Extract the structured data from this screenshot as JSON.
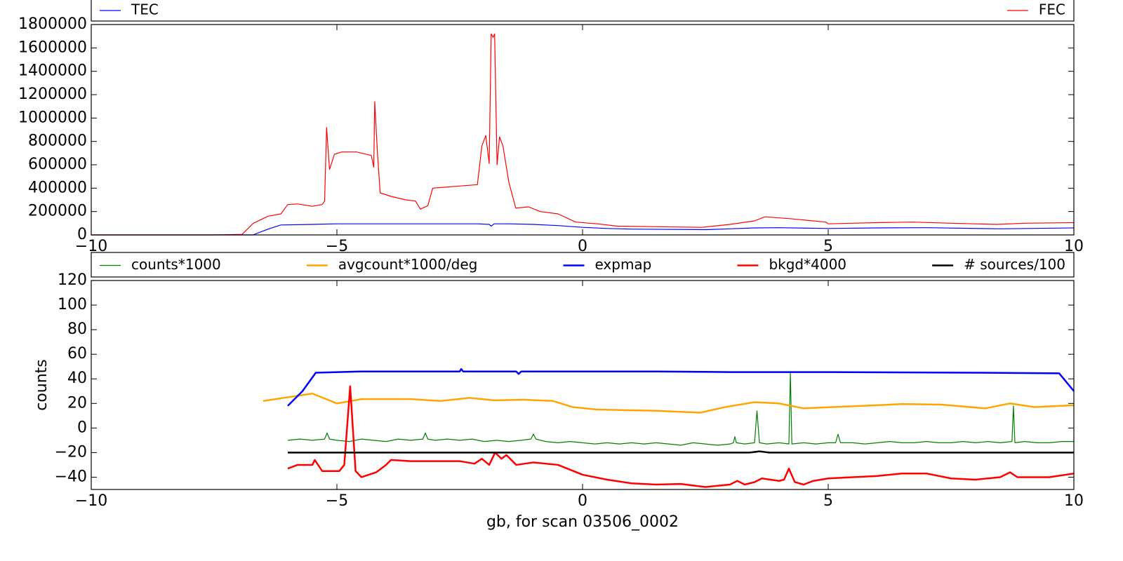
{
  "chart_data": [
    {
      "type": "line",
      "legend": "above",
      "xlim": [
        -10,
        10
      ],
      "xticks": [
        {
          "value": -10,
          "label": "−10"
        },
        {
          "value": -5,
          "label": "−5"
        },
        0,
        5,
        10
      ],
      "ylim": [
        0,
        1800000
      ],
      "yticks": [
        0,
        200000,
        400000,
        600000,
        800000,
        1000000,
        1200000,
        1400000,
        1600000,
        1800000
      ],
      "series": [
        {
          "name": "TEC",
          "color": "#0000ff",
          "x": [
            -10,
            -6.71,
            -6.4,
            -6.14,
            -5.5,
            -5,
            -4,
            -3,
            -2.14,
            -1.9,
            -1.86,
            -1.8,
            -1.5,
            -1,
            -0.5,
            0,
            0.5,
            1,
            2.5,
            3,
            3.5,
            4,
            5,
            6,
            7,
            8.5,
            10
          ],
          "values": [
            0,
            0,
            50000,
            85000,
            90000,
            95000,
            95000,
            95000,
            95000,
            90000,
            75000,
            95000,
            95000,
            90000,
            80000,
            65000,
            55000,
            50000,
            45000,
            52000,
            60000,
            62000,
            55000,
            60000,
            62000,
            52000,
            60000
          ]
        },
        {
          "name": "FEC",
          "color": "#ff0000",
          "x": [
            -10,
            -7.5,
            -6.93,
            -6.7,
            -6.4,
            -6.14,
            -6.0,
            -5.8,
            -5.5,
            -5.3,
            -5.25,
            -5.21,
            -5.15,
            -5.05,
            -4.9,
            -4.6,
            -4.3,
            -4.25,
            -4.23,
            -4.18,
            -4.12,
            -3.9,
            -3.6,
            -3.4,
            -3.3,
            -3.15,
            -3.05,
            -2.6,
            -2.14,
            -2.05,
            -1.97,
            -1.9,
            -1.86,
            -1.82,
            -1.79,
            -1.74,
            -1.69,
            -1.62,
            -1.5,
            -1.36,
            -1.1,
            -0.86,
            -0.5,
            -0.14,
            0.3,
            0.71,
            1.5,
            2.43,
            3.0,
            3.5,
            3.71,
            4.2,
            4.95,
            5.0,
            5.5,
            6.0,
            6.71,
            7.5,
            8.43,
            9.0,
            10
          ],
          "values": [
            0,
            0,
            5000,
            100000,
            160000,
            180000,
            260000,
            265000,
            245000,
            260000,
            290000,
            920000,
            560000,
            690000,
            710000,
            710000,
            680000,
            580000,
            1140000,
            740000,
            360000,
            330000,
            300000,
            290000,
            220000,
            250000,
            400000,
            415000,
            430000,
            760000,
            850000,
            610000,
            1720000,
            1690000,
            1720000,
            600000,
            840000,
            760000,
            450000,
            230000,
            240000,
            200000,
            180000,
            110000,
            95000,
            75000,
            70000,
            65000,
            90000,
            120000,
            155000,
            140000,
            110000,
            95000,
            100000,
            105000,
            110000,
            100000,
            90000,
            100000,
            105000
          ]
        }
      ]
    },
    {
      "type": "line",
      "legend": "above",
      "xlabel": "gb, for scan 03506_0002",
      "ylabel": "counts",
      "xlim": [
        -10,
        10
      ],
      "xticks": [
        {
          "value": -10,
          "label": "−10"
        },
        {
          "value": -5,
          "label": "−5"
        },
        0,
        5,
        10
      ],
      "ylim": [
        -50,
        120
      ],
      "yticks": [
        {
          "value": -40,
          "label": "−40"
        },
        {
          "value": -20,
          "label": "−20"
        },
        0,
        20,
        40,
        60,
        80,
        100,
        120
      ],
      "series": [
        {
          "name": "counts*1000",
          "color": "#008000",
          "x": [
            -6,
            -5.75,
            -5.5,
            -5.25,
            -5.2,
            -5.15,
            -5,
            -4.75,
            -4.5,
            -4.25,
            -4,
            -3.75,
            -3.5,
            -3.25,
            -3.2,
            -3.15,
            -3,
            -2.75,
            -2.5,
            -2.25,
            -2,
            -1.75,
            -1.5,
            -1.25,
            -1.05,
            -1,
            -0.95,
            -0.75,
            -0.5,
            -0.25,
            0,
            0.25,
            0.5,
            0.75,
            1,
            1.25,
            1.5,
            1.75,
            2,
            2.25,
            2.5,
            2.75,
            3,
            3.07,
            3.1,
            3.13,
            3.3,
            3.5,
            3.55,
            3.6,
            3.75,
            4,
            4.2,
            4.23,
            4.26,
            4.5,
            4.75,
            5,
            5.15,
            5.2,
            5.25,
            5.5,
            5.75,
            6,
            6.25,
            6.5,
            6.75,
            7,
            7.25,
            7.5,
            7.75,
            8,
            8.25,
            8.5,
            8.74,
            8.77,
            8.8,
            9,
            9.25,
            9.5,
            9.75,
            10
          ],
          "values": [
            -10,
            -9,
            -10,
            -9,
            -4,
            -9,
            -10,
            -11,
            -9,
            -10,
            -11,
            -9,
            -10,
            -9,
            -4,
            -9,
            -10,
            -9,
            -10,
            -9,
            -11,
            -10,
            -11,
            -10,
            -9,
            -5,
            -9,
            -11,
            -12,
            -11,
            -12,
            -13,
            -12,
            -13,
            -12,
            -13,
            -12,
            -13,
            -14,
            -12,
            -13,
            -14,
            -13,
            -12,
            -7,
            -12,
            -13,
            -12,
            14,
            -12,
            -13,
            -12,
            -13,
            45,
            -13,
            -12,
            -13,
            -12,
            -12,
            -5,
            -12,
            -12,
            -13,
            -12,
            -11,
            -12,
            -12,
            -11,
            -12,
            -12,
            -11,
            -12,
            -11,
            -12,
            -11,
            18,
            -12,
            -11,
            -12,
            -12,
            -11,
            -11
          ]
        },
        {
          "name": "avgcount*1000/deg",
          "color": "#ffa500",
          "x": [
            -6.5,
            -5.5,
            -5,
            -4.5,
            -3.5,
            -2.9,
            -2.3,
            -1.8,
            -1.2,
            -0.6,
            -0.2,
            0.3,
            1.5,
            2.4,
            2.9,
            3.5,
            4.0,
            4.5,
            6.0,
            6.5,
            7.3,
            8.2,
            8.7,
            9.2,
            10
          ],
          "values": [
            22,
            28,
            20,
            23.5,
            23.5,
            22,
            24.5,
            22.5,
            23,
            22,
            17,
            15,
            14,
            12.5,
            17,
            21,
            20,
            16,
            18.5,
            19.5,
            19,
            16,
            20,
            17,
            18.5
          ]
        },
        {
          "name": "expmap",
          "color": "#0000ff",
          "x": [
            -6,
            -5.7,
            -5.43,
            -4.5,
            -2.5,
            -2.47,
            -2.43,
            -1.35,
            -1.3,
            -1.25,
            0,
            1.5,
            3,
            5,
            8,
            9.7,
            10
          ],
          "values": [
            18,
            30,
            45,
            46,
            46,
            48,
            46,
            46,
            44,
            46,
            46,
            46,
            45.5,
            45.5,
            45,
            44.5,
            30
          ]
        },
        {
          "name": "bkgd*4000",
          "color": "#ff0000",
          "x": [
            -6,
            -5.8,
            -5.5,
            -5.45,
            -5.3,
            -4.95,
            -4.85,
            -4.73,
            -4.62,
            -4.5,
            -4.2,
            -4.0,
            -3.9,
            -3.5,
            -3.0,
            -2.5,
            -2.2,
            -2.05,
            -1.9,
            -1.78,
            -1.65,
            -1.55,
            -1.35,
            -1.0,
            -0.5,
            0,
            0.5,
            1.0,
            1.5,
            2.0,
            2.5,
            3.0,
            3.15,
            3.3,
            3.5,
            3.65,
            4.0,
            4.1,
            4.2,
            4.32,
            4.5,
            4.7,
            5.0,
            5.5,
            6.0,
            6.5,
            7.0,
            7.5,
            8.0,
            8.5,
            8.7,
            8.85,
            9.5,
            10
          ],
          "values": [
            -33,
            -30,
            -30,
            -26,
            -35,
            -35,
            -30,
            34,
            -35,
            -40,
            -36,
            -30,
            -26,
            -27,
            -27,
            -27,
            -29,
            -25,
            -30,
            -20,
            -25,
            -22,
            -30,
            -28,
            -30,
            -38,
            -42,
            -45,
            -46,
            -45.5,
            -48,
            -46,
            -43,
            -46,
            -44,
            -41,
            -43,
            -42,
            -33,
            -44,
            -46,
            -43,
            -41,
            -40,
            -39,
            -37,
            -37,
            -41,
            -42,
            -40,
            -36,
            -40,
            -40,
            -37
          ]
        },
        {
          "name": "# sources/100",
          "color": "#000000",
          "x": [
            -6,
            -2,
            0,
            3.4,
            3.6,
            3.8,
            6,
            10
          ],
          "values": [
            -20,
            -20,
            -20,
            -20,
            -19,
            -20,
            -20,
            -20
          ]
        }
      ]
    }
  ]
}
